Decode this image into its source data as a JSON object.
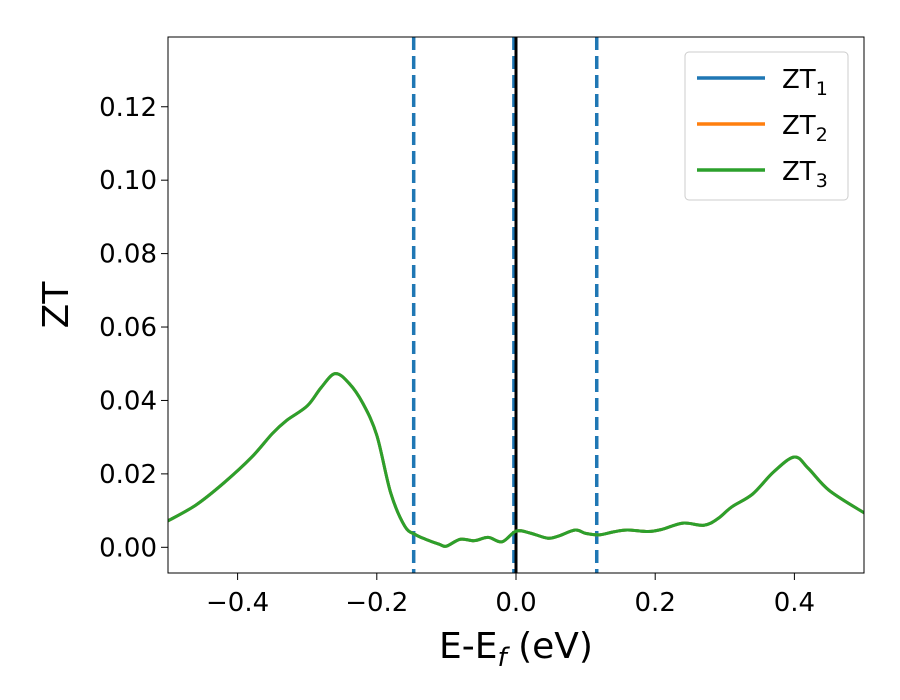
{
  "chart_data": {
    "type": "line",
    "xlabel": "E-E",
    "xlabel_sub": "f",
    "xlabel_suffix": " (eV)",
    "ylabel": "ZT",
    "xlim": [
      -0.5,
      0.5
    ],
    "ylim": [
      -0.007,
      0.139
    ],
    "x_ticks": [
      -0.4,
      -0.2,
      0.0,
      0.2,
      0.4
    ],
    "x_tick_labels": [
      "−0.4",
      "−0.2",
      "0.0",
      "0.2",
      "0.4"
    ],
    "y_ticks": [
      0.0,
      0.02,
      0.04,
      0.06,
      0.08,
      0.1,
      0.12
    ],
    "y_tick_labels": [
      "0.00",
      "0.02",
      "0.04",
      "0.06",
      "0.08",
      "0.10",
      "0.12"
    ],
    "grid": false,
    "legend_position": "top-right",
    "x": [
      -0.5,
      -0.46,
      -0.42,
      -0.38,
      -0.35,
      -0.33,
      -0.3,
      -0.28,
      -0.26,
      -0.24,
      -0.22,
      -0.2,
      -0.18,
      -0.16,
      -0.145,
      -0.13,
      -0.11,
      -0.1,
      -0.08,
      -0.06,
      -0.04,
      -0.02,
      0.0,
      0.02,
      0.045,
      0.06,
      0.085,
      0.1,
      0.12,
      0.14,
      0.16,
      0.19,
      0.21,
      0.24,
      0.27,
      0.29,
      0.31,
      0.34,
      0.37,
      0.4,
      0.42,
      0.45,
      0.5
    ],
    "series": [
      {
        "name": "ZT",
        "sub": "1",
        "color": "#1f77b4",
        "values": [
          0.0072,
          0.0115,
          0.0175,
          0.0245,
          0.031,
          0.0345,
          0.0385,
          0.0435,
          0.0473,
          0.0447,
          0.0392,
          0.0305,
          0.0148,
          0.0058,
          0.0035,
          0.0022,
          0.0008,
          0.0003,
          0.0022,
          0.0018,
          0.0027,
          0.0015,
          0.0044,
          0.0039,
          0.0025,
          0.003,
          0.0047,
          0.0038,
          0.0034,
          0.0042,
          0.0047,
          0.0043,
          0.0049,
          0.0066,
          0.006,
          0.0078,
          0.011,
          0.0145,
          0.0205,
          0.0246,
          0.0215,
          0.0155,
          0.0094
        ]
      },
      {
        "name": "ZT",
        "sub": "2",
        "color": "#ff7f0e",
        "values": [
          0.0072,
          0.0115,
          0.0175,
          0.0245,
          0.031,
          0.0345,
          0.0385,
          0.0435,
          0.0473,
          0.0447,
          0.0392,
          0.0305,
          0.0148,
          0.0058,
          0.0035,
          0.0022,
          0.0008,
          0.0003,
          0.0022,
          0.0018,
          0.0027,
          0.0015,
          0.0044,
          0.0039,
          0.0025,
          0.003,
          0.0047,
          0.0038,
          0.0034,
          0.0042,
          0.0047,
          0.0043,
          0.0049,
          0.0066,
          0.006,
          0.0078,
          0.011,
          0.0145,
          0.0205,
          0.0246,
          0.0215,
          0.0155,
          0.0094
        ]
      },
      {
        "name": "ZT",
        "sub": "3",
        "color": "#2ca02c",
        "values": [
          0.0072,
          0.0115,
          0.0175,
          0.0245,
          0.031,
          0.0345,
          0.0385,
          0.0435,
          0.0473,
          0.0447,
          0.0392,
          0.0305,
          0.0148,
          0.0058,
          0.0035,
          0.0022,
          0.0008,
          0.0003,
          0.0022,
          0.0018,
          0.0027,
          0.0015,
          0.0044,
          0.0039,
          0.0025,
          0.003,
          0.0047,
          0.0038,
          0.0034,
          0.0042,
          0.0047,
          0.0043,
          0.0049,
          0.0066,
          0.006,
          0.0078,
          0.011,
          0.0145,
          0.0205,
          0.0246,
          0.0215,
          0.0155,
          0.0094
        ]
      }
    ],
    "vlines": [
      {
        "x": -0.147,
        "color": "#1f77b4",
        "style": "dashed"
      },
      {
        "x": -0.003,
        "color": "#1f77b4",
        "style": "dashed"
      },
      {
        "x": 0.116,
        "color": "#1f77b4",
        "style": "dashed"
      },
      {
        "x": 0.0,
        "color": "#000000",
        "style": "solid"
      }
    ]
  }
}
